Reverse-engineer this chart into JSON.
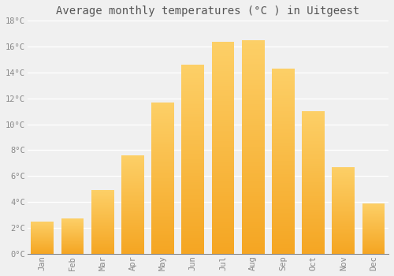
{
  "title": "Average monthly temperatures (°C ) in Uitgeest",
  "months": [
    "Jan",
    "Feb",
    "Mar",
    "Apr",
    "May",
    "Jun",
    "Jul",
    "Aug",
    "Sep",
    "Oct",
    "Nov",
    "Dec"
  ],
  "values": [
    2.5,
    2.7,
    4.9,
    7.6,
    11.7,
    14.6,
    16.4,
    16.5,
    14.3,
    11.0,
    6.7,
    3.9
  ],
  "bar_color_bottom": "#F5A623",
  "bar_color_top": "#FDD068",
  "ylim": [
    0,
    18
  ],
  "yticks": [
    0,
    2,
    4,
    6,
    8,
    10,
    12,
    14,
    16,
    18
  ],
  "ytick_labels": [
    "0°C",
    "2°C",
    "4°C",
    "6°C",
    "8°C",
    "10°C",
    "12°C",
    "14°C",
    "16°C",
    "18°C"
  ],
  "background_color": "#f0f0f0",
  "grid_color": "#ffffff",
  "title_fontsize": 10,
  "tick_fontsize": 7.5,
  "tick_color": "#888888",
  "font_family": "monospace",
  "bar_width": 0.75
}
